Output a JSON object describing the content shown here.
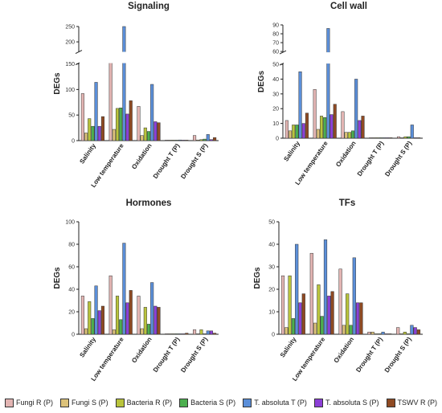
{
  "chart_data": [
    {
      "type": "bar",
      "title": "Signaling",
      "ylabel": "DEGs",
      "xlabel": "",
      "categories": [
        "Salinity",
        "Low temperature",
        "Oxidation",
        "Drought T (P)",
        "Drought S (P)"
      ],
      "y_tick_labels": [
        "0",
        "50",
        "100",
        "150",
        "200",
        "250"
      ],
      "axis_break": true,
      "series": [
        {
          "name": "Fungi R (P)",
          "values": [
            92,
            162,
            67,
            0,
            10
          ]
        },
        {
          "name": "Fungi S (P)",
          "values": [
            15,
            22,
            10,
            0,
            1
          ]
        },
        {
          "name": "Bacteria R (P)",
          "values": [
            43,
            63,
            25,
            0,
            2
          ]
        },
        {
          "name": "Bacteria S (P)",
          "values": [
            28,
            64,
            18,
            0,
            3
          ]
        },
        {
          "name": "T. absoluta T (P)",
          "values": [
            114,
            250,
            110,
            1,
            12
          ]
        },
        {
          "name": "T. absoluta S (P)",
          "values": [
            28,
            52,
            37,
            0,
            2
          ]
        },
        {
          "name": "TSWV R (P)",
          "values": [
            47,
            78,
            35,
            0,
            6
          ]
        }
      ]
    },
    {
      "type": "bar",
      "title": "Cell wall",
      "ylabel": "DEGs",
      "xlabel": "",
      "categories": [
        "Salinity",
        "Low temperature",
        "Oxidation",
        "Drought T (P)",
        "Drought S (P)"
      ],
      "y_tick_labels": [
        "0",
        "10",
        "20",
        "30",
        "40",
        "50",
        "60",
        "70",
        "80",
        "90"
      ],
      "axis_break": true,
      "series": [
        {
          "name": "Fungi R (P)",
          "values": [
            12,
            33,
            18,
            0,
            1
          ]
        },
        {
          "name": "Fungi S (P)",
          "values": [
            5,
            6,
            4,
            0,
            0
          ]
        },
        {
          "name": "Bacteria R (P)",
          "values": [
            9,
            15,
            4,
            0,
            1
          ]
        },
        {
          "name": "Bacteria S (P)",
          "values": [
            9,
            14,
            5,
            0,
            1
          ]
        },
        {
          "name": "T. absoluta T (P)",
          "values": [
            45,
            86,
            40,
            0,
            9
          ]
        },
        {
          "name": "T. absoluta S (P)",
          "values": [
            10,
            16,
            12,
            0,
            0
          ]
        },
        {
          "name": "TSWV R (P)",
          "values": [
            17,
            23,
            15,
            0,
            0
          ]
        }
      ]
    },
    {
      "type": "bar",
      "title": "Hormones",
      "ylabel": "DEGs",
      "xlabel": "",
      "categories": [
        "Salinity",
        "Low temperature",
        "Oxidation",
        "Drought T (P)",
        "Drought S (P)"
      ],
      "y_tick_labels": [
        "0",
        "20",
        "40",
        "60",
        "80",
        "100"
      ],
      "axis_break": false,
      "series": [
        {
          "name": "Fungi R (P)",
          "values": [
            34,
            52,
            34,
            0,
            4
          ]
        },
        {
          "name": "Fungi S (P)",
          "values": [
            5,
            4,
            5,
            0,
            0
          ]
        },
        {
          "name": "Bacteria R (P)",
          "values": [
            29,
            34,
            24,
            0,
            4
          ]
        },
        {
          "name": "Bacteria S (P)",
          "values": [
            14,
            13,
            9,
            0,
            0
          ]
        },
        {
          "name": "T. absoluta T (P)",
          "values": [
            43,
            81,
            46,
            0,
            3
          ]
        },
        {
          "name": "T. absoluta S (P)",
          "values": [
            21,
            28,
            25,
            0,
            3
          ]
        },
        {
          "name": "TSWV R (P)",
          "values": [
            25,
            39,
            24,
            1,
            1
          ]
        }
      ]
    },
    {
      "type": "bar",
      "title": "TFs",
      "ylabel": "DEGs",
      "xlabel": "",
      "categories": [
        "Salinity",
        "Low temperature",
        "Oxidation",
        "Drought T (P)",
        "Drought S (P)"
      ],
      "y_tick_labels": [
        "0",
        "10",
        "20",
        "30",
        "40",
        "50"
      ],
      "axis_break": false,
      "series": [
        {
          "name": "Fungi R (P)",
          "values": [
            26,
            36,
            29,
            1,
            3
          ]
        },
        {
          "name": "Fungi S (P)",
          "values": [
            3,
            5,
            4,
            1,
            0
          ]
        },
        {
          "name": "Bacteria R (P)",
          "values": [
            26,
            22,
            18,
            0,
            1
          ]
        },
        {
          "name": "Bacteria S (P)",
          "values": [
            7,
            8,
            4,
            0,
            0
          ]
        },
        {
          "name": "T. absoluta T (P)",
          "values": [
            40,
            42,
            34,
            1,
            4
          ]
        },
        {
          "name": "T. absoluta S (P)",
          "values": [
            14,
            17,
            14,
            0,
            3
          ]
        },
        {
          "name": "TSWV R (P)",
          "values": [
            18,
            19,
            14,
            0,
            2
          ]
        }
      ]
    }
  ],
  "legend": [
    {
      "label": "Fungi R (P)",
      "color": "#e3b5b3"
    },
    {
      "label": "Fungi S (P)",
      "color": "#dcc27a"
    },
    {
      "label": "Bacteria R (P)",
      "color": "#b9c43c"
    },
    {
      "label": "Bacteria S (P)",
      "color": "#4caf4f"
    },
    {
      "label": "T. absoluta T (P)",
      "color": "#5b8fd9"
    },
    {
      "label": "T. absoluta S (P)",
      "color": "#8c3fd6"
    },
    {
      "label": "TSWV R (P)",
      "color": "#8f4a23"
    }
  ]
}
